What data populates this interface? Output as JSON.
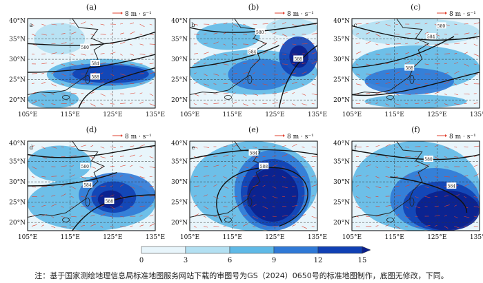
{
  "panels": [
    {
      "label": "(a)",
      "inset": "a",
      "vector_scale": "8 m · s⁻¹",
      "contours": [
        "580",
        "584",
        "588"
      ]
    },
    {
      "label": "(b)",
      "inset": "b",
      "vector_scale": "8 m · s⁻¹",
      "contours": [
        "580",
        "584",
        "588"
      ]
    },
    {
      "label": "(c)",
      "inset": "c",
      "vector_scale": "8 m · s⁻¹",
      "contours": [
        "580",
        "584",
        "588"
      ]
    },
    {
      "label": "(d)",
      "inset": "d",
      "vector_scale": "8 m · s⁻¹",
      "contours": [
        "580",
        "584",
        "588"
      ]
    },
    {
      "label": "(e)",
      "inset": "e",
      "vector_scale": "8 m · s⁻¹",
      "contours": [
        "584",
        "588"
      ]
    },
    {
      "label": "(f)",
      "inset": "f",
      "vector_scale": "8 m · s⁻¹",
      "contours": [
        "580",
        "584"
      ]
    }
  ],
  "axes": {
    "lat_ticks": [
      "40°N",
      "35°N",
      "30°N",
      "25°N",
      "20°N"
    ],
    "lon_ticks": [
      "105°E",
      "115°E",
      "125°E",
      "135°E"
    ]
  },
  "colorbar": {
    "ticks": [
      "0",
      "3",
      "6",
      "9",
      "12",
      "15"
    ],
    "colors": [
      "#e8f5fb",
      "#b3e0f2",
      "#5fb9e6",
      "#2f79d6",
      "#1040b4",
      "#0b1f8c"
    ]
  },
  "colors": {
    "vector": "#e0402f",
    "contour": "#111111",
    "coast": "#222222"
  },
  "note": "注：基于国家测绘地理信息局标准地图服务网站下载的审图号为GS（2024）0650号的标准地图制作，底图无修改，下同。"
}
